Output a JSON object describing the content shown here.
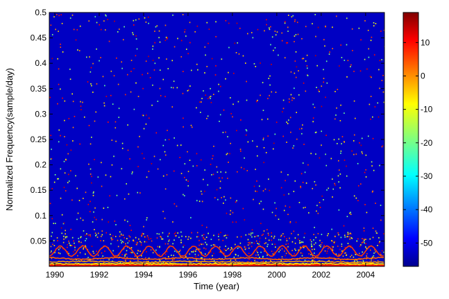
{
  "chart_data": {
    "type": "heatmap",
    "title": "",
    "xlabel": "Time (year)",
    "ylabel": "Normalized Frequency(sample/day)",
    "xlim": [
      1989.75,
      2004.85
    ],
    "ylim": [
      0,
      0.5
    ],
    "x_ticks": [
      "1990",
      "1992",
      "1994",
      "1996",
      "1998",
      "2000",
      "2002",
      "2004"
    ],
    "x_tick_values": [
      1990,
      1992,
      1994,
      1996,
      1998,
      2000,
      2002,
      2004
    ],
    "y_ticks": [
      "0.05",
      "0.1",
      "0.15",
      "0.2",
      "0.25",
      "0.3",
      "0.35",
      "0.4",
      "0.45",
      "0.5"
    ],
    "y_tick_values": [
      0.05,
      0.1,
      0.15,
      0.2,
      0.25,
      0.3,
      0.35,
      0.4,
      0.45,
      0.5
    ],
    "colorbar": {
      "range": [
        -57,
        19
      ],
      "ticks": [
        "10",
        "0",
        "-10",
        "-20",
        "-30",
        "-40",
        "-50"
      ],
      "tick_values": [
        10,
        0,
        -10,
        -20,
        -30,
        -40,
        -50
      ],
      "colormap": "jet"
    },
    "background_value": -52,
    "ridges": [
      {
        "base": 0.03,
        "amplitude": 0.01,
        "period_years": 1.0,
        "value": 5
      },
      {
        "base": 0.0155,
        "amplitude": 0.0015,
        "period_years": 3.0,
        "value": 2
      },
      {
        "base": 0.009,
        "amplitude": 0.001,
        "period_years": 5.0,
        "value": -2
      },
      {
        "base": 0.005,
        "amplitude": 0.0,
        "period_years": 1.0,
        "value": -8
      },
      {
        "base": 0.0015,
        "amplitude": 0.0,
        "period_years": 1.0,
        "value": 10
      }
    ],
    "speckle_density": "sparse scattered points from -20 to 15 across all frequencies, denser below 0.05"
  },
  "colors": {
    "axis": "#000000",
    "figure_background": "#ffffff"
  }
}
